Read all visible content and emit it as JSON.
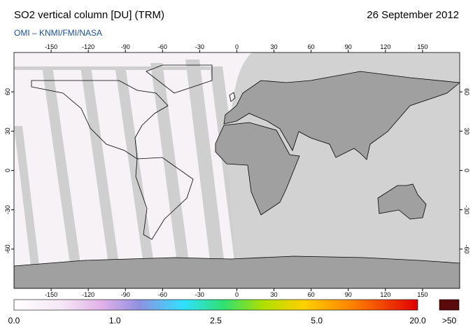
{
  "header": {
    "title": "SO2 vertical column [DU] (TRM)",
    "date": "26 September 2012",
    "source": "OMI  –  KNMI/FMI/NASA"
  },
  "map": {
    "lon_ticks": [
      -150,
      -120,
      -90,
      -60,
      -30,
      0,
      30,
      60,
      90,
      120,
      150
    ],
    "lat_ticks": [
      60,
      30,
      0,
      -30,
      -60
    ],
    "xlim": [
      -180,
      180
    ],
    "ylim": [
      -90,
      90
    ]
  },
  "colorbar": {
    "labels": [
      "0.0",
      "1.0",
      "2.5",
      "5.0",
      "20.0"
    ],
    "overflow_label": ">50"
  }
}
